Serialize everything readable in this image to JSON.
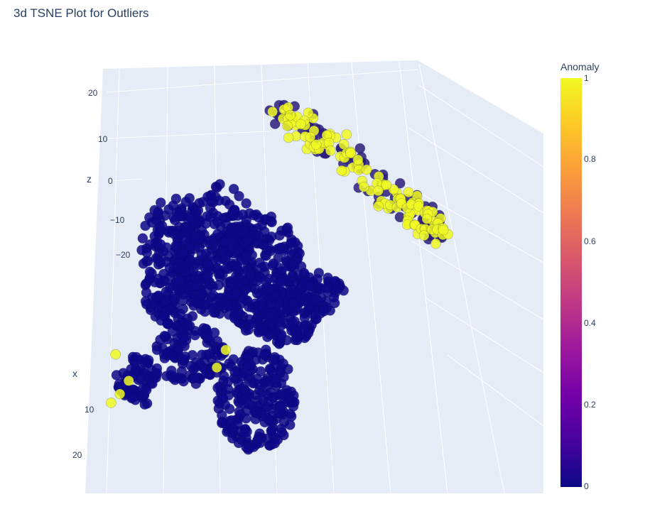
{
  "chart_data": {
    "type": "scatter",
    "title": "3d TSNE Plot for Outliers",
    "colorbar": {
      "title": "Anomaly",
      "range": [
        0,
        1
      ],
      "ticks": [
        "0",
        "0.2",
        "0.4",
        "0.6",
        "0.8",
        "1"
      ],
      "colorscale": [
        "#0d0887",
        "#46039f",
        "#7201a8",
        "#9c179e",
        "#bd3786",
        "#d8576b",
        "#ed7953",
        "#fb9f3a",
        "#fdca26",
        "#f0f921"
      ]
    },
    "axis_ticks_left": [
      "20",
      "10",
      "0",
      "−10",
      "−20"
    ],
    "axis_ticks_bottom_left": [
      "10",
      "20"
    ],
    "axis_title_left": "z",
    "axis_title_bottom_left": "x",
    "scene_colors": {
      "background": "#e5ecf6",
      "grid": "#ffffff",
      "normal_point": "#0d0887",
      "outlier_point": "#f0f921"
    },
    "clusters": [
      {
        "anomaly": 0,
        "x_range": [
          -22,
          22
        ],
        "y_range": [
          -25,
          20
        ]
      },
      {
        "anomaly": 1,
        "x_range": [
          0,
          20
        ],
        "y_range": [
          5,
          25
        ]
      }
    ]
  }
}
